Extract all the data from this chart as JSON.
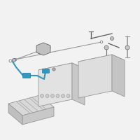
{
  "bg_color": "#ffffff",
  "line_color": "#999999",
  "dark_line": "#666666",
  "teal_color": "#3399bb",
  "box_face_front": "#e0e0e0",
  "box_face_top": "#d0d0d0",
  "box_face_side": "#c4c4c4",
  "tray_face": "#cccccc",
  "tray_edge": "#999999",
  "fig_bg": "#f2f2f2"
}
